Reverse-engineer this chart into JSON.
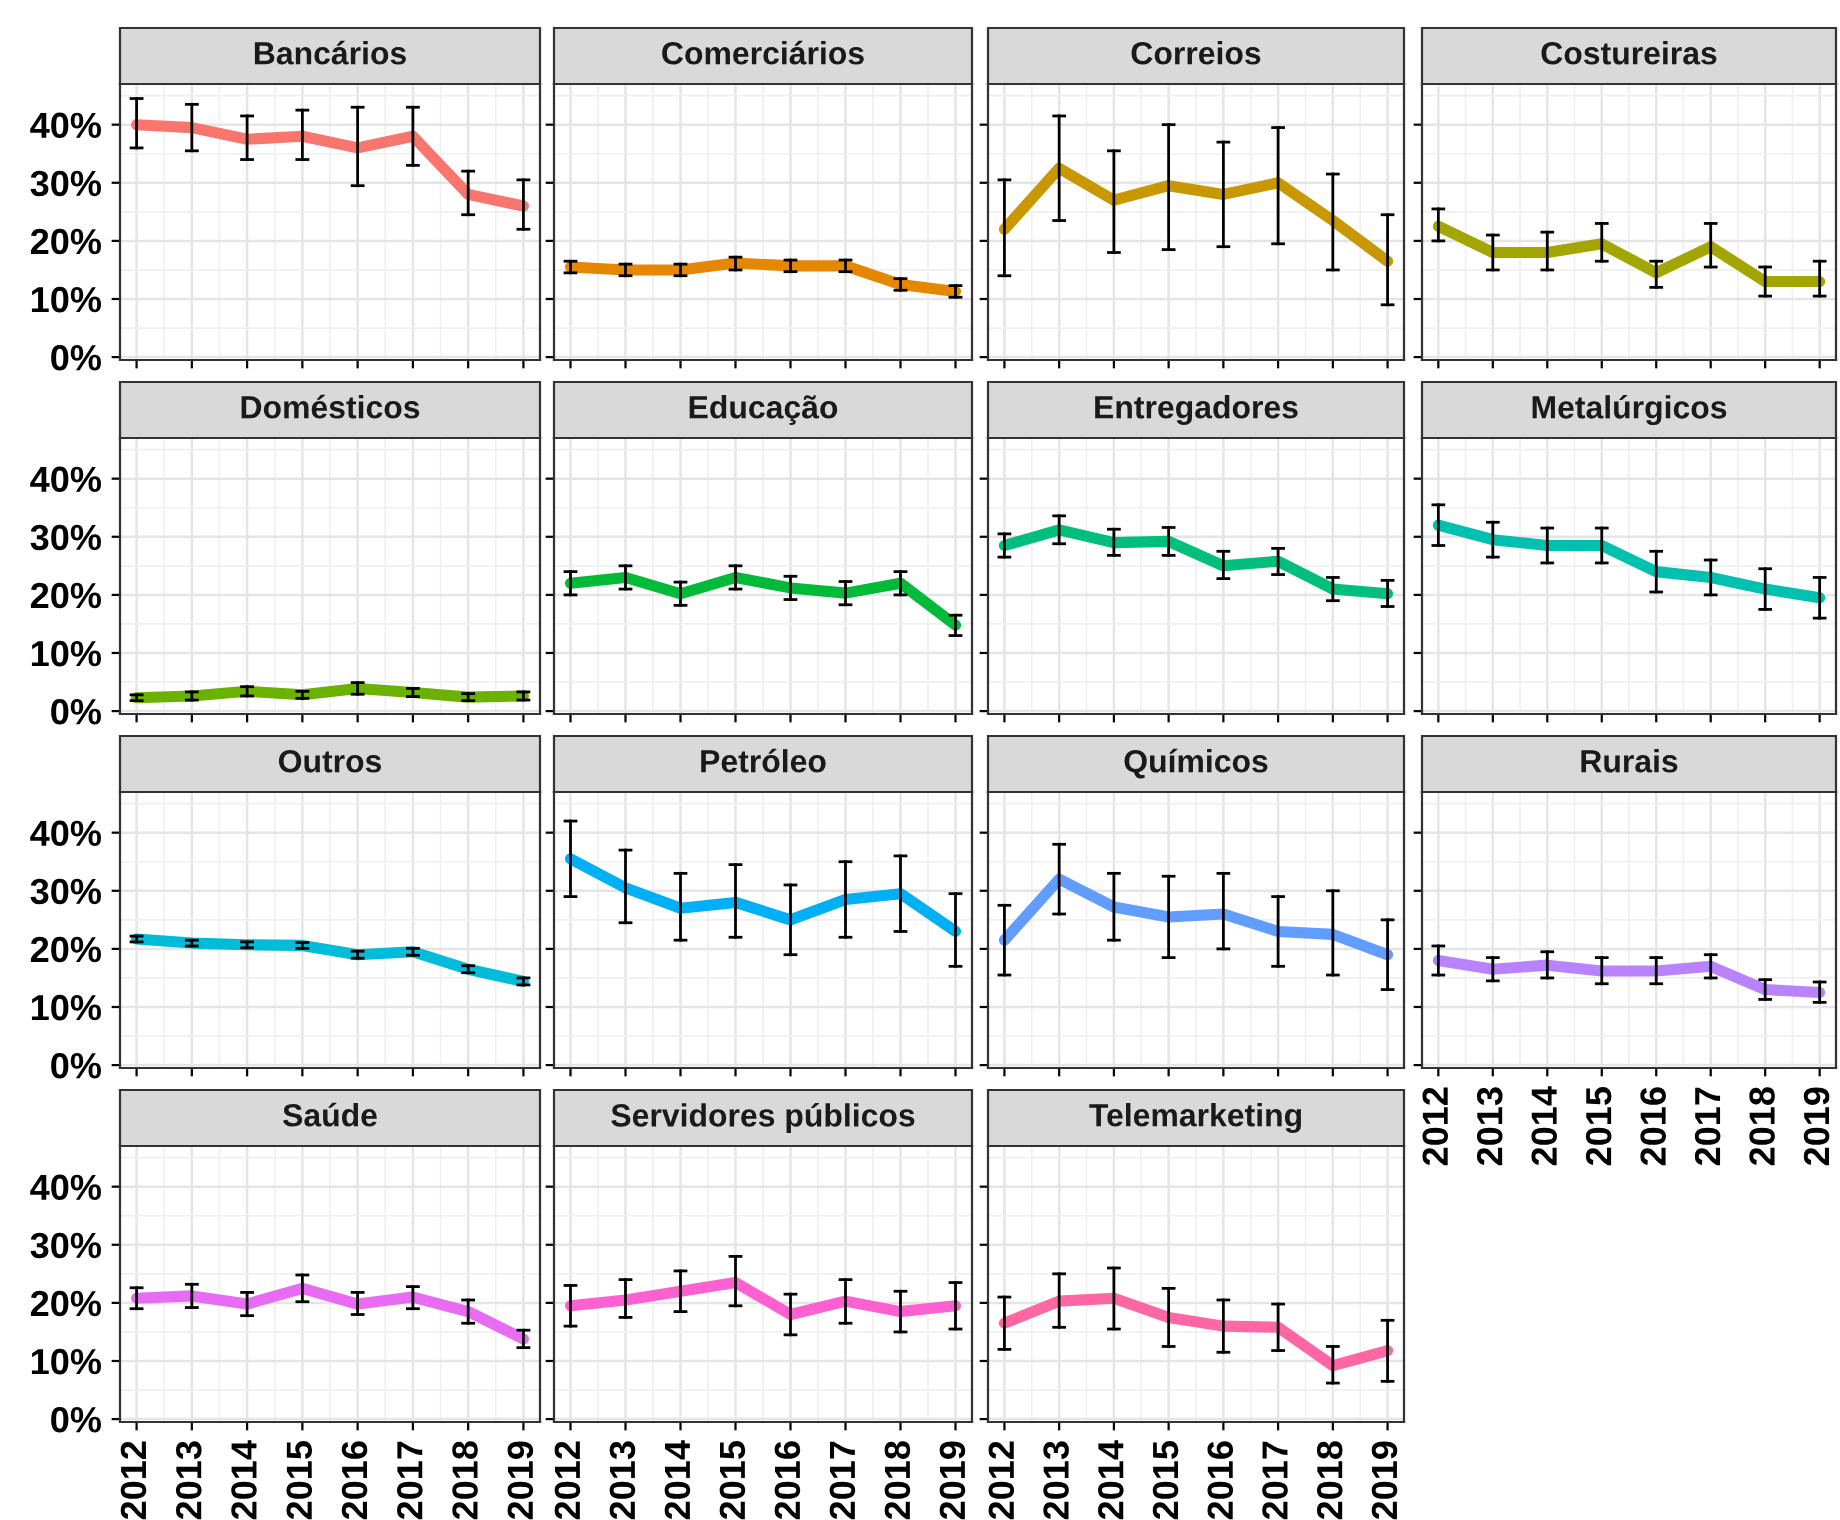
{
  "chart_data": [
    {
      "type": "line",
      "title": "Bancários",
      "categories": [
        "2012",
        "2013",
        "2014",
        "2015",
        "2016",
        "2017",
        "2018",
        "2019"
      ],
      "color": "#F8766D",
      "values": [
        40,
        39.5,
        37.5,
        38,
        36,
        38,
        28,
        26
      ],
      "errors": [
        [
          36,
          44.5
        ],
        [
          35.5,
          43.5
        ],
        [
          34,
          41.5
        ],
        [
          34,
          42.5
        ],
        [
          29.5,
          43
        ],
        [
          33,
          43
        ],
        [
          24.5,
          32
        ],
        [
          22,
          30.5
        ]
      ],
      "ylim": [
        -0.5,
        47
      ],
      "yticks": [
        {
          "value": 0,
          "label": "0%"
        },
        {
          "value": 10,
          "label": "10%"
        },
        {
          "value": 20,
          "label": "20%"
        },
        {
          "value": 30,
          "label": "30%"
        },
        {
          "value": 40,
          "label": "40%"
        }
      ],
      "grid": true,
      "tick_labels": "y"
    },
    {
      "type": "line",
      "title": "Comerciários",
      "categories": [
        "2012",
        "2013",
        "2014",
        "2015",
        "2016",
        "2017",
        "2018",
        "2019"
      ],
      "color": "#E58700",
      "values": [
        15.5,
        15,
        15,
        16.2,
        15.7,
        15.7,
        12.5,
        11.3
      ],
      "errors": [
        [
          14.5,
          16.5
        ],
        [
          14,
          16
        ],
        [
          14,
          16
        ],
        [
          15,
          17.2
        ],
        [
          14.7,
          16.7
        ],
        [
          14.7,
          16.7
        ],
        [
          11.5,
          13.5
        ],
        [
          10.3,
          12.3
        ]
      ],
      "ylim": [
        -0.5,
        47
      ],
      "yticks": [
        {
          "value": 0,
          "label": null
        },
        {
          "value": 10,
          "label": null
        },
        {
          "value": 20,
          "label": null
        },
        {
          "value": 30,
          "label": null
        },
        {
          "value": 40,
          "label": null
        }
      ],
      "grid": true,
      "tick_labels": false
    },
    {
      "type": "line",
      "title": "Correios",
      "categories": [
        "2012",
        "2013",
        "2014",
        "2015",
        "2016",
        "2017",
        "2018",
        "2019"
      ],
      "color": "#C99800",
      "values": [
        22,
        32.5,
        27,
        29.5,
        28,
        30,
        23.5,
        16.5
      ],
      "errors": [
        [
          14,
          30.5
        ],
        [
          23.5,
          41.5
        ],
        [
          18,
          35.5
        ],
        [
          18.5,
          40
        ],
        [
          19,
          37
        ],
        [
          19.5,
          39.5
        ],
        [
          15,
          31.5
        ],
        [
          9,
          24.5
        ]
      ],
      "ylim": [
        -0.5,
        47
      ],
      "yticks": [
        {
          "value": 0,
          "label": null
        },
        {
          "value": 10,
          "label": null
        },
        {
          "value": 20,
          "label": null
        },
        {
          "value": 30,
          "label": null
        },
        {
          "value": 40,
          "label": null
        }
      ],
      "grid": true,
      "tick_labels": false
    },
    {
      "type": "line",
      "title": "Costureiras",
      "categories": [
        "2012",
        "2013",
        "2014",
        "2015",
        "2016",
        "2017",
        "2018",
        "2019"
      ],
      "color": "#A3A500",
      "values": [
        22.5,
        18,
        18,
        19.5,
        14.5,
        19,
        13,
        13
      ],
      "errors": [
        [
          20,
          25.5
        ],
        [
          15,
          21
        ],
        [
          15,
          21.5
        ],
        [
          16.5,
          23
        ],
        [
          12,
          16.5
        ],
        [
          15.5,
          23
        ],
        [
          10.5,
          15.5
        ],
        [
          10.5,
          16.5
        ]
      ],
      "ylim": [
        -0.5,
        47
      ],
      "yticks": [
        {
          "value": 0,
          "label": null
        },
        {
          "value": 10,
          "label": null
        },
        {
          "value": 20,
          "label": null
        },
        {
          "value": 30,
          "label": null
        },
        {
          "value": 40,
          "label": null
        }
      ],
      "grid": true,
      "tick_labels": false
    },
    {
      "type": "line",
      "title": "Domésticos",
      "categories": [
        "2012",
        "2013",
        "2014",
        "2015",
        "2016",
        "2017",
        "2018",
        "2019"
      ],
      "color": "#6BB100",
      "values": [
        2.3,
        2.6,
        3.4,
        2.8,
        3.9,
        3.2,
        2.4,
        2.6
      ],
      "errors": [
        [
          1.8,
          2.8
        ],
        [
          1.9,
          3.3
        ],
        [
          2.6,
          4.2
        ],
        [
          2.2,
          3.4
        ],
        [
          2.9,
          4.9
        ],
        [
          2.5,
          3.9
        ],
        [
          1.8,
          3
        ],
        [
          1.9,
          3.3
        ]
      ],
      "ylim": [
        -0.5,
        47
      ],
      "yticks": [
        {
          "value": 0,
          "label": "0%"
        },
        {
          "value": 10,
          "label": "10%"
        },
        {
          "value": 20,
          "label": "20%"
        },
        {
          "value": 30,
          "label": "30%"
        },
        {
          "value": 40,
          "label": "40%"
        }
      ],
      "grid": true,
      "tick_labels": "y"
    },
    {
      "type": "line",
      "title": "Educação",
      "categories": [
        "2012",
        "2013",
        "2014",
        "2015",
        "2016",
        "2017",
        "2018",
        "2019"
      ],
      "color": "#00BA38",
      "values": [
        22,
        23,
        20.2,
        23,
        21.2,
        20.3,
        22,
        14.8
      ],
      "errors": [
        [
          20,
          24
        ],
        [
          21,
          25
        ],
        [
          18.2,
          22.2
        ],
        [
          21,
          25
        ],
        [
          19.2,
          23.2
        ],
        [
          18.3,
          22.3
        ],
        [
          20,
          24
        ],
        [
          13,
          16.5
        ]
      ],
      "ylim": [
        -0.5,
        47
      ],
      "yticks": [
        {
          "value": 0,
          "label": null
        },
        {
          "value": 10,
          "label": null
        },
        {
          "value": 20,
          "label": null
        },
        {
          "value": 30,
          "label": null
        },
        {
          "value": 40,
          "label": null
        }
      ],
      "grid": true,
      "tick_labels": false
    },
    {
      "type": "line",
      "title": "Entregadores",
      "categories": [
        "2012",
        "2013",
        "2014",
        "2015",
        "2016",
        "2017",
        "2018",
        "2019"
      ],
      "color": "#00BF7D",
      "values": [
        28.5,
        31.2,
        29,
        29.2,
        25,
        25.8,
        21,
        20.2
      ],
      "errors": [
        [
          26.5,
          30.5
        ],
        [
          28.8,
          33.6
        ],
        [
          26.8,
          31.3
        ],
        [
          26.8,
          31.6
        ],
        [
          22.8,
          27.5
        ],
        [
          23.5,
          28
        ],
        [
          19,
          23
        ],
        [
          18,
          22.5
        ]
      ],
      "ylim": [
        -0.5,
        47
      ],
      "yticks": [
        {
          "value": 0,
          "label": null
        },
        {
          "value": 10,
          "label": null
        },
        {
          "value": 20,
          "label": null
        },
        {
          "value": 30,
          "label": null
        },
        {
          "value": 40,
          "label": null
        }
      ],
      "grid": true,
      "tick_labels": false
    },
    {
      "type": "line",
      "title": "Metalúrgicos",
      "categories": [
        "2012",
        "2013",
        "2014",
        "2015",
        "2016",
        "2017",
        "2018",
        "2019"
      ],
      "color": "#00C0AF",
      "values": [
        32,
        29.5,
        28.5,
        28.5,
        24,
        23,
        21,
        19.5
      ],
      "errors": [
        [
          28.5,
          35.5
        ],
        [
          26.5,
          32.5
        ],
        [
          25.5,
          31.5
        ],
        [
          25.5,
          31.5
        ],
        [
          20.5,
          27.5
        ],
        [
          20,
          26
        ],
        [
          17.5,
          24.5
        ],
        [
          16,
          23
        ]
      ],
      "ylim": [
        -0.5,
        47
      ],
      "yticks": [
        {
          "value": 0,
          "label": null
        },
        {
          "value": 10,
          "label": null
        },
        {
          "value": 20,
          "label": null
        },
        {
          "value": 30,
          "label": null
        },
        {
          "value": 40,
          "label": null
        }
      ],
      "grid": true,
      "tick_labels": false
    },
    {
      "type": "line",
      "title": "Outros",
      "categories": [
        "2012",
        "2013",
        "2014",
        "2015",
        "2016",
        "2017",
        "2018",
        "2019"
      ],
      "color": "#00BCD8",
      "values": [
        21.7,
        21,
        20.7,
        20.6,
        19,
        19.5,
        16.5,
        14.4
      ],
      "errors": [
        [
          21.2,
          22.2
        ],
        [
          20.5,
          21.5
        ],
        [
          20.2,
          21.2
        ],
        [
          20.1,
          21.1
        ],
        [
          18.4,
          19.6
        ],
        [
          18.9,
          20.1
        ],
        [
          15.9,
          17.1
        ],
        [
          13.8,
          15
        ]
      ],
      "ylim": [
        -0.5,
        47
      ],
      "yticks": [
        {
          "value": 0,
          "label": "0%"
        },
        {
          "value": 10,
          "label": "10%"
        },
        {
          "value": 20,
          "label": "20%"
        },
        {
          "value": 30,
          "label": "30%"
        },
        {
          "value": 40,
          "label": "40%"
        }
      ],
      "grid": true,
      "tick_labels": "y"
    },
    {
      "type": "line",
      "title": "Petróleo",
      "categories": [
        "2012",
        "2013",
        "2014",
        "2015",
        "2016",
        "2017",
        "2018",
        "2019"
      ],
      "color": "#00B0F6",
      "values": [
        35.5,
        30.5,
        27,
        28,
        25,
        28.5,
        29.5,
        23
      ],
      "errors": [
        [
          29,
          42
        ],
        [
          24.5,
          37
        ],
        [
          21.5,
          33
        ],
        [
          22,
          34.5
        ],
        [
          19,
          31
        ],
        [
          22,
          35
        ],
        [
          23,
          36
        ],
        [
          17,
          29.5
        ]
      ],
      "ylim": [
        -0.5,
        47
      ],
      "yticks": [
        {
          "value": 0,
          "label": null
        },
        {
          "value": 10,
          "label": null
        },
        {
          "value": 20,
          "label": null
        },
        {
          "value": 30,
          "label": null
        },
        {
          "value": 40,
          "label": null
        }
      ],
      "grid": true,
      "tick_labels": false
    },
    {
      "type": "line",
      "title": "Químicos",
      "categories": [
        "2012",
        "2013",
        "2014",
        "2015",
        "2016",
        "2017",
        "2018",
        "2019"
      ],
      "color": "#619CFF",
      "values": [
        21.5,
        32,
        27.2,
        25.5,
        26,
        23,
        22.5,
        19
      ],
      "errors": [
        [
          15.5,
          27.5
        ],
        [
          26,
          38
        ],
        [
          21.5,
          33
        ],
        [
          18.5,
          32.5
        ],
        [
          20,
          33
        ],
        [
          17,
          29
        ],
        [
          15.5,
          30
        ],
        [
          13,
          25
        ]
      ],
      "ylim": [
        -0.5,
        47
      ],
      "yticks": [
        {
          "value": 0,
          "label": null
        },
        {
          "value": 10,
          "label": null
        },
        {
          "value": 20,
          "label": null
        },
        {
          "value": 30,
          "label": null
        },
        {
          "value": 40,
          "label": null
        }
      ],
      "grid": true,
      "tick_labels": false
    },
    {
      "type": "line",
      "title": "Rurais",
      "categories": [
        "2012",
        "2013",
        "2014",
        "2015",
        "2016",
        "2017",
        "2018",
        "2019"
      ],
      "color": "#B983FF",
      "values": [
        18,
        16.5,
        17.2,
        16.2,
        16.2,
        17,
        13,
        12.5
      ],
      "errors": [
        [
          15.5,
          20.5
        ],
        [
          14.5,
          18.5
        ],
        [
          15,
          19.5
        ],
        [
          14,
          18.5
        ],
        [
          14,
          18.5
        ],
        [
          15,
          19
        ],
        [
          11.3,
          14.7
        ],
        [
          10.8,
          14.3
        ]
      ],
      "ylim": [
        -0.5,
        47
      ],
      "yticks": [
        {
          "value": 0,
          "label": null
        },
        {
          "value": 10,
          "label": null
        },
        {
          "value": 20,
          "label": null
        },
        {
          "value": 30,
          "label": null
        },
        {
          "value": 40,
          "label": null
        }
      ],
      "grid": true,
      "tick_labels": "x"
    },
    {
      "type": "line",
      "title": "Saúde",
      "categories": [
        "2012",
        "2013",
        "2014",
        "2015",
        "2016",
        "2017",
        "2018",
        "2019"
      ],
      "color": "#E76BF3",
      "values": [
        20.8,
        21.2,
        19.8,
        22.5,
        19.8,
        21,
        18.5,
        13.8
      ],
      "errors": [
        [
          19,
          22.6
        ],
        [
          19.2,
          23.2
        ],
        [
          17.8,
          21.8
        ],
        [
          20.2,
          24.8
        ],
        [
          18,
          21.8
        ],
        [
          19,
          22.8
        ],
        [
          16.5,
          20.5
        ],
        [
          12.3,
          15.3
        ]
      ],
      "ylim": [
        -0.5,
        47
      ],
      "yticks": [
        {
          "value": 0,
          "label": "0%"
        },
        {
          "value": 10,
          "label": "10%"
        },
        {
          "value": 20,
          "label": "20%"
        },
        {
          "value": 30,
          "label": "30%"
        },
        {
          "value": 40,
          "label": "40%"
        }
      ],
      "grid": true
    },
    {
      "type": "line",
      "title": "Servidores públicos",
      "categories": [
        "2012",
        "2013",
        "2014",
        "2015",
        "2016",
        "2017",
        "2018",
        "2019"
      ],
      "color": "#FD61D1",
      "values": [
        19.5,
        20.5,
        22,
        23.5,
        18,
        20.3,
        18.5,
        19.5
      ],
      "errors": [
        [
          16,
          23
        ],
        [
          17.5,
          24
        ],
        [
          18.5,
          25.5
        ],
        [
          19.5,
          28
        ],
        [
          14.5,
          21.5
        ],
        [
          16.5,
          24
        ],
        [
          15,
          22
        ],
        [
          15.5,
          23.5
        ]
      ],
      "ylim": [
        -0.5,
        47
      ],
      "yticks": [
        {
          "value": 0,
          "label": null
        },
        {
          "value": 10,
          "label": null
        },
        {
          "value": 20,
          "label": null
        },
        {
          "value": 30,
          "label": null
        },
        {
          "value": 40,
          "label": null
        }
      ],
      "grid": true,
      "tick_labels": "x"
    },
    {
      "type": "line",
      "title": "Telemarketing",
      "categories": [
        "2012",
        "2013",
        "2014",
        "2015",
        "2016",
        "2017",
        "2018",
        "2019"
      ],
      "color": "#FF67A4",
      "values": [
        16.5,
        20.3,
        20.8,
        17.5,
        16,
        15.8,
        9.2,
        11.8
      ],
      "errors": [
        [
          12,
          21
        ],
        [
          15.8,
          25
        ],
        [
          15.5,
          26
        ],
        [
          12.5,
          22.5
        ],
        [
          11.5,
          20.5
        ],
        [
          11.8,
          19.8
        ],
        [
          6.2,
          12.5
        ],
        [
          6.5,
          17
        ]
      ],
      "ylim": [
        -0.5,
        47
      ],
      "yticks": [
        {
          "value": 0,
          "label": null
        },
        {
          "value": 10,
          "label": null
        },
        {
          "value": 20,
          "label": null
        },
        {
          "value": 30,
          "label": null
        },
        {
          "value": 40,
          "label": null
        }
      ],
      "grid": true,
      "tick_labels": "x"
    }
  ]
}
